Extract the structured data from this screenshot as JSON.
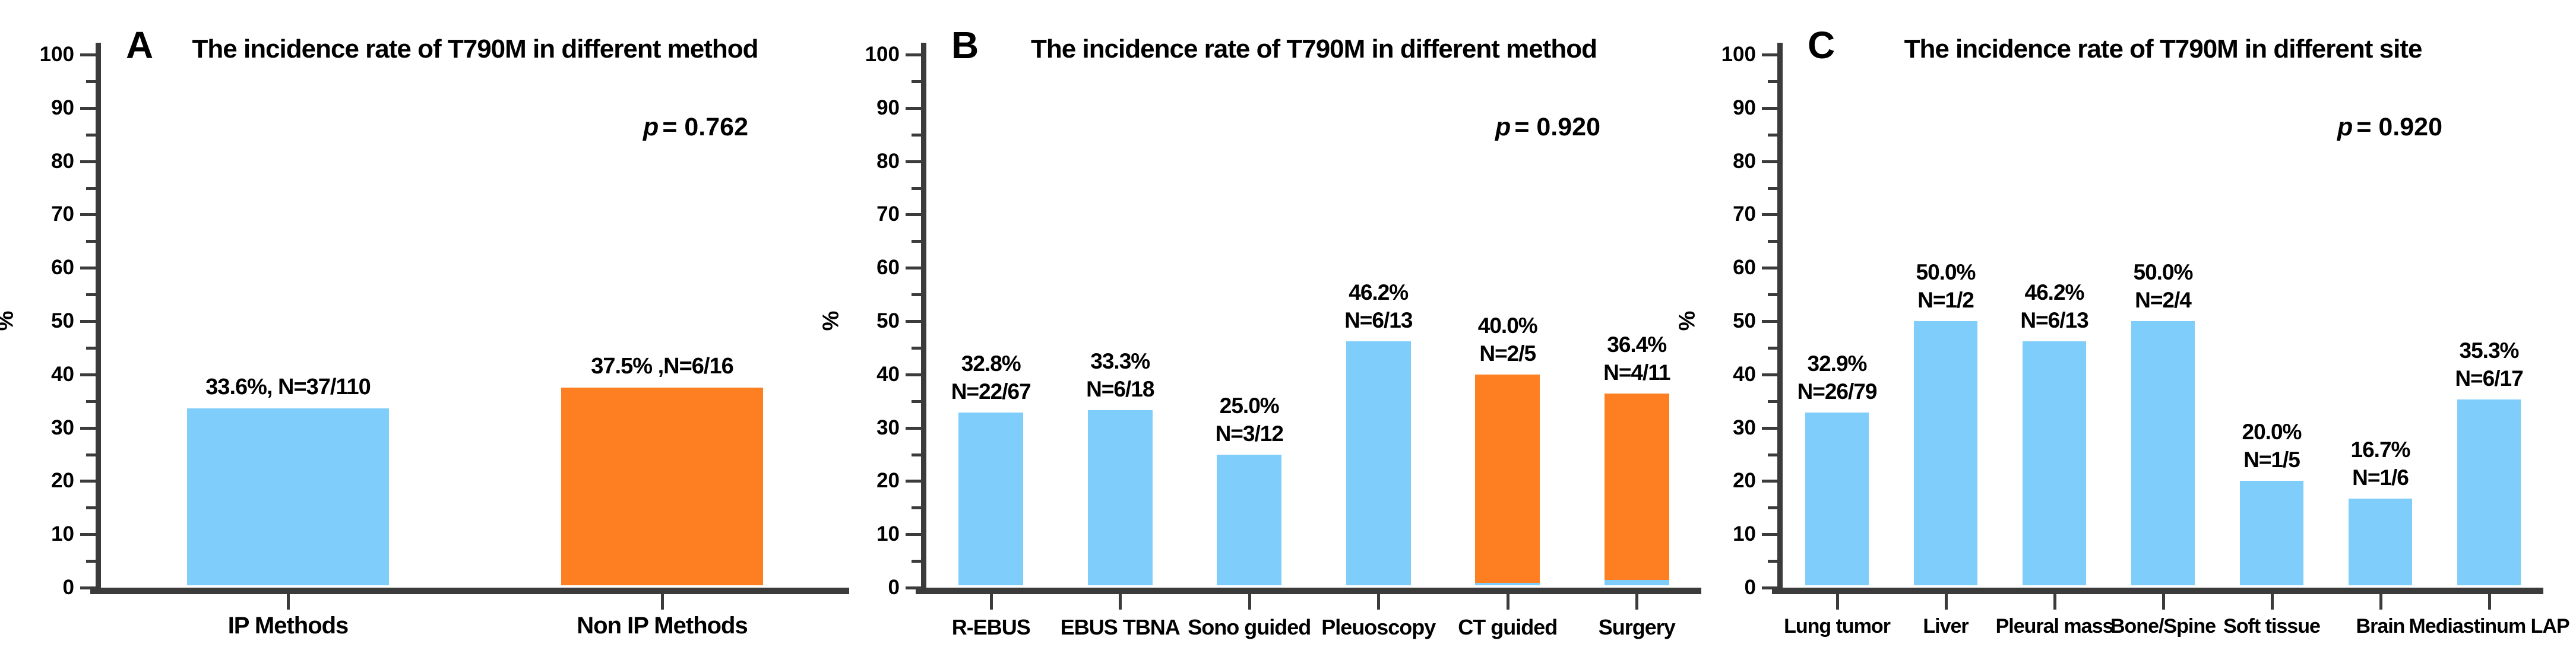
{
  "figure": {
    "background": "#ffffff"
  },
  "palette": {
    "blue": "#7ECDFB",
    "orange": "#FD7F22",
    "axis": "#3b3b3b",
    "text": "#000000"
  },
  "chart_data": [
    {
      "type": "bar",
      "panel": "A",
      "title": "The incidence rate of T790M in different method",
      "p_sym": "p",
      "p_rest": "= 0.762",
      "ylabel": "%",
      "ylim": [
        0,
        100
      ],
      "ytick_step": 10,
      "yminor_step": 5,
      "grid": false,
      "legend": "none",
      "categories": [
        "IP Methods",
        "Non IP Methods"
      ],
      "values": [
        33.6,
        37.5
      ],
      "bar_labels": [
        "33.6%, N=37/110",
        "37.5% ,N=6/16"
      ],
      "colors": [
        "blue",
        "orange"
      ],
      "base_strips": [
        0,
        0
      ]
    },
    {
      "type": "bar",
      "panel": "B",
      "title": "The incidence rate of T790M in different method",
      "p_sym": "p",
      "p_rest": "= 0.920",
      "ylabel": "%",
      "ylim": [
        0,
        100
      ],
      "ytick_step": 10,
      "yminor_step": 5,
      "grid": false,
      "legend": "none",
      "categories": [
        "R-EBUS",
        "EBUS TBNA",
        "Sono guided",
        "Pleuoscopy",
        "CT guided",
        "Surgery"
      ],
      "values": [
        32.8,
        33.3,
        25.0,
        46.2,
        40.0,
        36.4
      ],
      "bar_labels": [
        "32.8%\nN=22/67",
        "33.3%\nN=6/18",
        "25.0%\nN=3/12",
        "46.2%\nN=6/13",
        "40.0%\nN=2/5",
        "36.4%\nN=4/11"
      ],
      "colors": [
        "blue",
        "blue",
        "blue",
        "blue",
        "orange",
        "orange"
      ],
      "base_strips": [
        0,
        0,
        0,
        0,
        4,
        9
      ]
    },
    {
      "type": "bar",
      "panel": "C",
      "title": "The incidence rate of T790M in different site",
      "p_sym": "p",
      "p_rest": "= 0.920",
      "ylabel": "%",
      "ylim": [
        0,
        100
      ],
      "ytick_step": 10,
      "yminor_step": 5,
      "grid": false,
      "legend": "none",
      "categories": [
        "Lung tumor",
        "Liver",
        "Pleural mass",
        "Bone/Spine",
        "Soft tissue",
        "Brain",
        "Mediastinum LAP"
      ],
      "values": [
        32.9,
        50.0,
        46.2,
        50.0,
        20.0,
        16.7,
        35.3
      ],
      "bar_labels": [
        "32.9%\nN=26/79",
        "50.0%\nN=1/2",
        "46.2%\nN=6/13",
        "50.0%\nN=2/4",
        "20.0%\nN=1/5",
        "16.7%\nN=1/6",
        "35.3%\nN=6/17"
      ],
      "colors": [
        "blue",
        "blue",
        "blue",
        "blue",
        "blue",
        "blue",
        "blue"
      ],
      "base_strips": [
        0,
        0,
        0,
        0,
        0,
        0,
        0
      ]
    }
  ]
}
